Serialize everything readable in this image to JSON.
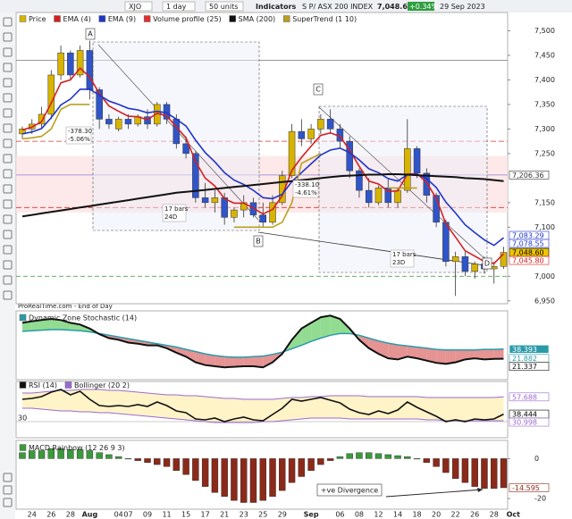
{
  "toolbar": {
    "symbol": "XJO",
    "interval": "1 day",
    "units": "50 units",
    "indicators": "Indicators"
  },
  "header": {
    "instrument": "S P/ ASX 200 INDEX",
    "price": "7,048.60",
    "change": "+0.34%",
    "date": "29 Sep 2023"
  },
  "source": "ProRealTime.com - End of Day",
  "chart_data": [
    {
      "type": "candlestick",
      "categories": [
        null,
        "24",
        null,
        "26",
        null,
        "28",
        null,
        "Aug",
        null,
        null,
        "04",
        "07",
        null,
        "09",
        null,
        "11",
        null,
        "15",
        null,
        "17",
        null,
        "21",
        null,
        "23",
        null,
        "25",
        null,
        "29",
        null,
        null,
        "Sep",
        null,
        null,
        "06",
        null,
        "08",
        null,
        "12",
        null,
        "14",
        null,
        "18",
        null,
        "20",
        null,
        "22",
        null,
        "26",
        null,
        "28",
        null,
        "Oct"
      ],
      "ylim": [
        6935,
        7530
      ],
      "yticks": [
        {
          "value": 7500,
          "label": "7,500"
        },
        {
          "value": 7450,
          "label": "7,450"
        },
        {
          "value": 7400,
          "label": "7,400"
        },
        {
          "value": 7350,
          "label": "7,350"
        },
        {
          "value": 7300,
          "label": "7,300"
        },
        {
          "value": 7250,
          "label": "7,250"
        },
        {
          "value": 7150,
          "label": "7,150"
        },
        {
          "value": 7100,
          "label": "7,100"
        },
        {
          "value": 7000,
          "label": "7,000"
        },
        {
          "value": 6950,
          "label": "6,950"
        }
      ],
      "series": [
        {
          "name": "Price",
          "up_color": "#d8b400",
          "down_color": "#2f55c8",
          "open": [
            7290,
            7300,
            7310,
            7330,
            7410,
            7455,
            7410,
            7460,
            7380,
            7320,
            7300,
            7320,
            7310,
            7325,
            7310,
            7350,
            7320,
            7270,
            7250,
            7160,
            7150,
            7160,
            7120,
            7135,
            7150,
            7125,
            7110,
            7150,
            7205,
            7295,
            7280,
            7300,
            7320,
            7300,
            7275,
            7215,
            7175,
            7150,
            7180,
            7150,
            7175,
            7260,
            7210,
            7165,
            7110,
            7030,
            7040,
            7010,
            7025,
            7015,
            7020,
            null
          ],
          "high": [
            7305,
            7320,
            7345,
            7420,
            7470,
            7460,
            7470,
            7480,
            7385,
            7330,
            7325,
            7330,
            7330,
            7340,
            7355,
            7355,
            7330,
            7285,
            7255,
            7190,
            7175,
            7170,
            7140,
            7165,
            7160,
            7150,
            7165,
            7215,
            7310,
            7320,
            7310,
            7330,
            7340,
            7310,
            7285,
            7220,
            7200,
            7185,
            7200,
            7180,
            7320,
            7265,
            7220,
            7170,
            7115,
            7050,
            7050,
            7030,
            7040,
            7030,
            7060,
            null
          ],
          "low": [
            7280,
            7290,
            7300,
            7320,
            7400,
            7400,
            7405,
            7360,
            7300,
            7300,
            7295,
            7300,
            7305,
            7300,
            7305,
            7310,
            7260,
            7240,
            7150,
            7140,
            7130,
            7105,
            7110,
            7120,
            7120,
            7100,
            7105,
            7145,
            7200,
            7265,
            7270,
            7290,
            7290,
            7260,
            7200,
            7160,
            7140,
            7145,
            7140,
            7140,
            7170,
            7200,
            7150,
            7100,
            7020,
            6960,
            7000,
            6995,
            7005,
            6985,
            7015,
            null
          ],
          "close": [
            7300,
            7310,
            7330,
            7410,
            7455,
            7410,
            7460,
            7380,
            7320,
            7310,
            7320,
            7310,
            7325,
            7310,
            7350,
            7320,
            7270,
            7250,
            7160,
            7150,
            7160,
            7120,
            7135,
            7150,
            7125,
            7110,
            7150,
            7205,
            7295,
            7280,
            7300,
            7320,
            7300,
            7275,
            7215,
            7175,
            7150,
            7180,
            7150,
            7175,
            7260,
            7210,
            7165,
            7110,
            7030,
            7040,
            7010,
            7025,
            7015,
            7020,
            7048.6,
            null
          ]
        },
        {
          "name": "EMA (4)",
          "color": "#d42020",
          "values": [
            7298,
            7304,
            7315,
            7353,
            7394,
            7400,
            7424,
            7406,
            7372,
            7347,
            7336,
            7326,
            7325,
            7319,
            7332,
            7327,
            7304,
            7282,
            7233,
            7200,
            7184,
            7158,
            7149,
            7149,
            7139,
            7127,
            7136,
            7164,
            7216,
            7242,
            7265,
            7287,
            7292,
            7285,
            7257,
            7224,
            7194,
            7188,
            7173,
            7174,
            7208,
            7209,
            7191,
            7159,
            7107,
            7080,
            7052,
            7041,
            7030,
            7026,
            7045.8,
            null
          ]
        },
        {
          "name": "EMA (9)",
          "color": "#1f35c8",
          "values": [
            7290,
            7294,
            7301,
            7323,
            7349,
            7361,
            7381,
            7381,
            7369,
            7357,
            7350,
            7342,
            7339,
            7333,
            7336,
            7333,
            7320,
            7306,
            7277,
            7252,
            7233,
            7211,
            7196,
            7187,
            7175,
            7160,
            7158,
            7167,
            7193,
            7211,
            7229,
            7247,
            7257,
            7261,
            7252,
            7237,
            7219,
            7211,
            7199,
            7194,
            7207,
            7208,
            7199,
            7181,
            7151,
            7129,
            7105,
            7089,
            7074,
            7063,
            7078.55,
            null
          ]
        },
        {
          "name": "Volume profile (25)",
          "color": "#e03030",
          "levels": [
            7275,
            7140
          ],
          "band": [
            7130,
            7245
          ]
        },
        {
          "name": "SMA (200)",
          "color": "#111111",
          "values": [
            7122,
            7125,
            7128,
            7131,
            7134,
            7137,
            7140,
            7143,
            7146,
            7149,
            7152,
            7155,
            7158,
            7161,
            7164,
            7167,
            7170,
            7172,
            7174,
            7176,
            7178,
            7180,
            7182,
            7184,
            7186,
            7188,
            7190,
            7192,
            7194,
            7196,
            7198,
            7200,
            7202,
            7204,
            7205,
            7206,
            7207,
            7207,
            7208,
            7208,
            7207,
            7206,
            7205,
            7204,
            7203,
            7202,
            7200,
            7199,
            7198,
            7196,
            7194,
            null
          ]
        },
        {
          "name": "SuperTrend (1 10)",
          "color": "#b8a020",
          "values": [
            7280,
            7282,
            7285,
            7300,
            7340,
            7350,
            7350,
            7350,
            null,
            null,
            null,
            null,
            null,
            null,
            null,
            null,
            null,
            null,
            null,
            null,
            null,
            null,
            7100,
            7100,
            7100,
            7100,
            7100,
            7110,
            7150,
            7230,
            7240,
            7250,
            null,
            null,
            null,
            null,
            null,
            null,
            7180,
            7180,
            7180,
            7180,
            null,
            null,
            null,
            null,
            null,
            null,
            null,
            null,
            null,
            null
          ]
        }
      ],
      "hlines": [
        {
          "value": 7440,
          "color": "#8a8a8a"
        },
        {
          "value": 7206.36,
          "color": "#8c7fd6"
        },
        {
          "value": 7000,
          "color": "#2a9a2a"
        }
      ],
      "tags": [
        {
          "value": 7206.36,
          "label": "7,206.36",
          "bg": "#ffffff",
          "fg": "#333333"
        },
        {
          "value": 7083.29,
          "label": "7,083.29",
          "bg": "#ffffff",
          "fg": "#1f35c8"
        },
        {
          "value": 7078.55,
          "label": "7,078.55",
          "bg": "#ffffff",
          "fg": "#1f35c8"
        },
        {
          "value": 7048.6,
          "label": "7,048.60",
          "bg": "#f2c500",
          "fg": "#000000"
        },
        {
          "value": 7045.8,
          "label": "7,045.80",
          "bg": "#ffffff",
          "fg": "#d42020"
        }
      ],
      "annotations": {
        "a": "A",
        "b": "B",
        "c": "C",
        "d": "D",
        "ab_change": "-378.30",
        "ab_pct": "-5.06%",
        "ab_bars": "17 bars",
        "ab_days": "24D",
        "cd_change": "-338.10",
        "cd_pct": "-4.61%",
        "cd_bars": "17 bars",
        "cd_days": "23D"
      }
    },
    {
      "type": "line",
      "title": "Dynamic Zone Stochastic (14)",
      "ylim": [
        0,
        100
      ],
      "fill_up": "#7fd67f",
      "fill_down": "#e08080",
      "series": [
        {
          "color": "#111111",
          "values": [
            85,
            88,
            90,
            92,
            90,
            85,
            82,
            75,
            65,
            58,
            55,
            50,
            48,
            45,
            45,
            40,
            32,
            25,
            15,
            10,
            8,
            6,
            7,
            8,
            8,
            6,
            15,
            30,
            55,
            75,
            85,
            95,
            98,
            92,
            75,
            55,
            40,
            30,
            22,
            20,
            25,
            22,
            18,
            14,
            12,
            15,
            20,
            22,
            20,
            21,
            21.337,
            null
          ]
        },
        {
          "color": "#2a9aa8",
          "values": [
            70,
            71,
            72,
            73,
            73,
            72,
            71,
            69,
            66,
            63,
            60,
            57,
            54,
            51,
            48,
            45,
            42,
            38,
            34,
            30,
            27,
            25,
            24,
            24,
            25,
            26,
            29,
            33,
            39,
            45,
            52,
            58,
            63,
            66,
            66,
            63,
            58,
            53,
            49,
            46,
            44,
            42,
            40,
            38,
            37,
            37,
            37,
            37,
            38,
            38,
            38.393,
            null
          ]
        }
      ],
      "tags": [
        {
          "value": 38.393,
          "label": "38.393",
          "bg": "#2a9aa8",
          "fg": "#ffffff"
        },
        {
          "value": 21.882,
          "label": "21.882",
          "bg": "#ffffff",
          "fg": "#2a9aa8"
        },
        {
          "value": 21.337,
          "label": "21.337",
          "bg": "#ffffff",
          "fg": "#111111"
        }
      ]
    },
    {
      "type": "rsi",
      "ylim": [
        24,
        70
      ],
      "yticks": [
        30
      ],
      "series": [
        {
          "name": "RSI (14)",
          "color": "#111111",
          "values": [
            55,
            56,
            58,
            63,
            66,
            60,
            64,
            55,
            48,
            47,
            48,
            47,
            49,
            47,
            52,
            48,
            42,
            40,
            33,
            32,
            34,
            30,
            33,
            35,
            32,
            31,
            38,
            45,
            55,
            53,
            55,
            57,
            54,
            51,
            44,
            40,
            38,
            42,
            39,
            43,
            52,
            46,
            41,
            36,
            30,
            32,
            30,
            33,
            32,
            33,
            38.444,
            null
          ]
        },
        {
          "name": "Bollinger (20 2)",
          "color": "#9a6ad0",
          "fill": "#fff4c8",
          "upper": [
            62,
            62,
            63,
            64,
            65,
            65,
            66,
            66,
            66,
            65,
            65,
            64,
            63,
            62,
            61,
            60,
            60,
            59,
            59,
            58,
            57,
            56,
            56,
            55,
            55,
            55,
            55,
            56,
            57,
            57,
            58,
            58,
            59,
            59,
            59,
            59,
            58,
            58,
            58,
            58,
            58,
            58,
            57,
            57,
            57,
            57,
            57,
            57,
            57,
            57,
            57.688,
            null
          ],
          "lower": [
            45,
            45,
            44,
            43,
            42,
            42,
            41,
            41,
            40,
            40,
            39,
            38,
            37,
            36,
            35,
            34,
            33,
            32,
            31,
            30,
            29,
            29,
            29,
            29,
            29,
            30,
            30,
            31,
            32,
            33,
            34,
            34,
            34,
            34,
            33,
            33,
            33,
            33,
            33,
            33,
            33,
            33,
            32,
            32,
            31,
            31,
            31,
            31,
            31,
            31,
            30.998,
            null
          ]
        }
      ],
      "tags": [
        {
          "value": 57.688,
          "label": "57.688",
          "bg": "#ffffff",
          "fg": "#9a6ad0"
        },
        {
          "value": 38.444,
          "label": "38.444",
          "bg": "#ffffff",
          "fg": "#000000"
        },
        {
          "value": 30.998,
          "label": "30.998",
          "bg": "#ffffff",
          "fg": "#9a6ad0"
        }
      ]
    },
    {
      "type": "bar",
      "ylim": [
        -24,
        6
      ],
      "yticks": [
        0,
        -20
      ],
      "positive_color": "#3a9a3a",
      "negative_color": "#8b2a1a",
      "annotation": "+ve Divergence",
      "series": [
        {
          "name": "MACD Rainbow (12 26 9 3)",
          "values": [
            3,
            4,
            4,
            5,
            5,
            4.5,
            4.5,
            4,
            3,
            2,
            1,
            0,
            -1,
            -2,
            -3,
            -4,
            -6,
            -8,
            -11,
            -14,
            -17,
            -19,
            -21,
            -22,
            -22,
            -21,
            -19,
            -16,
            -12,
            -9,
            -6,
            -3,
            -1,
            1,
            2.5,
            3,
            3,
            2.5,
            2,
            1.5,
            1,
            0,
            -2,
            -4,
            -7,
            -10,
            -12,
            -14,
            -15,
            -15,
            -14.595,
            null
          ]
        }
      ],
      "tags": [
        {
          "value": -14.595,
          "label": "-14.595",
          "bg": "#ffffff",
          "fg": "#8b2a1a"
        }
      ]
    }
  ]
}
